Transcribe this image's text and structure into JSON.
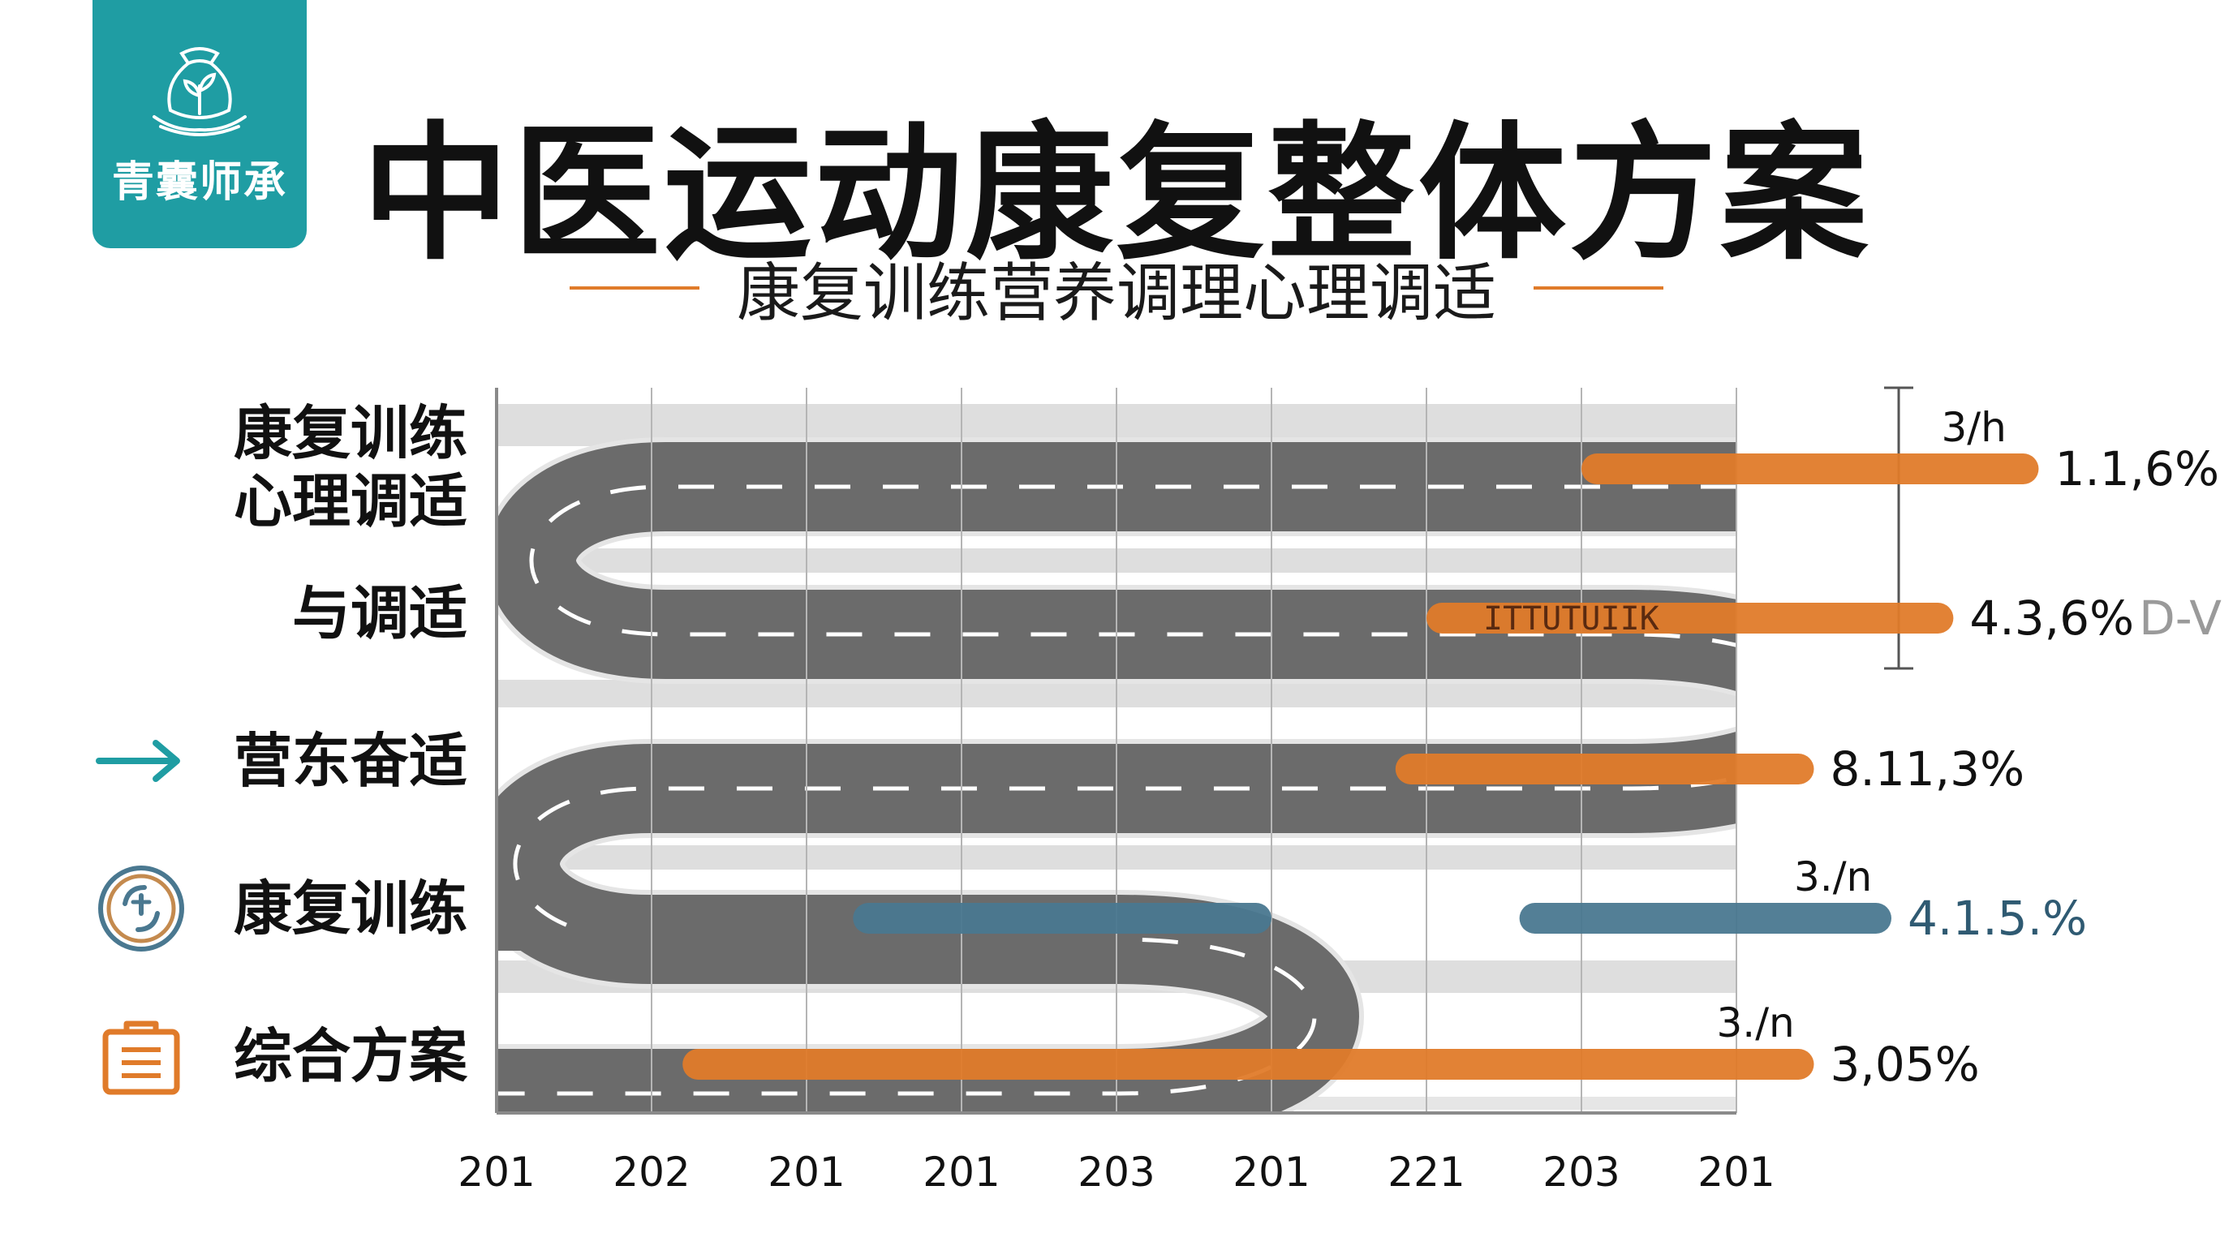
{
  "brand": {
    "name": "青囊师承",
    "icon": "herb-pouch-icon"
  },
  "title": "中医运动康复整体方案",
  "subtitle": "康复训练营养调理心理调适",
  "colors": {
    "accent": "#e07b2a",
    "teal": "#1f9da3",
    "road": "#6b6b6b",
    "band": "#dedede",
    "steel": "#4a7890"
  },
  "rows": [
    {
      "label_lines": [
        "康复训练",
        "心理调适"
      ],
      "icon": ""
    },
    {
      "label_lines": [
        "与调适"
      ],
      "icon": ""
    },
    {
      "label_lines": [
        "营东奋适"
      ],
      "icon": "arrow-right-icon"
    },
    {
      "label_lines": [
        "康复训练"
      ],
      "icon": "cycle-badge-icon"
    },
    {
      "label_lines": [
        "综合方案"
      ],
      "icon": "briefcase-icon"
    }
  ],
  "chart_data": {
    "type": "bar",
    "x_ticks": [
      "201",
      "202",
      "201",
      "201",
      "203",
      "201",
      "221",
      "203",
      "201"
    ],
    "bars": [
      {
        "row": 0,
        "start": 7.0,
        "end": 9.95,
        "color": "orange",
        "value_label": "1.1,6%",
        "tag": "3/h"
      },
      {
        "row": 1,
        "start": 6.0,
        "end": 9.4,
        "color": "orange",
        "value_label": "4.3,6%",
        "suffix": "D-V",
        "inner_text": "ITTUTUIIK"
      },
      {
        "row": 2,
        "start": 5.8,
        "end": 8.5,
        "color": "orange",
        "value_label": "8.11,3%"
      },
      {
        "row": 3,
        "start": 2.3,
        "end": 5.0,
        "color": "steel",
        "value_label": ""
      },
      {
        "row": 3,
        "start": 6.6,
        "end": 9.0,
        "color": "steel",
        "value_label": "4.1.5.%",
        "tag": "3./n"
      },
      {
        "row": 4,
        "start": 1.2,
        "end": 8.5,
        "color": "orange",
        "value_label": "3,05%",
        "tag": "3./n"
      }
    ]
  }
}
